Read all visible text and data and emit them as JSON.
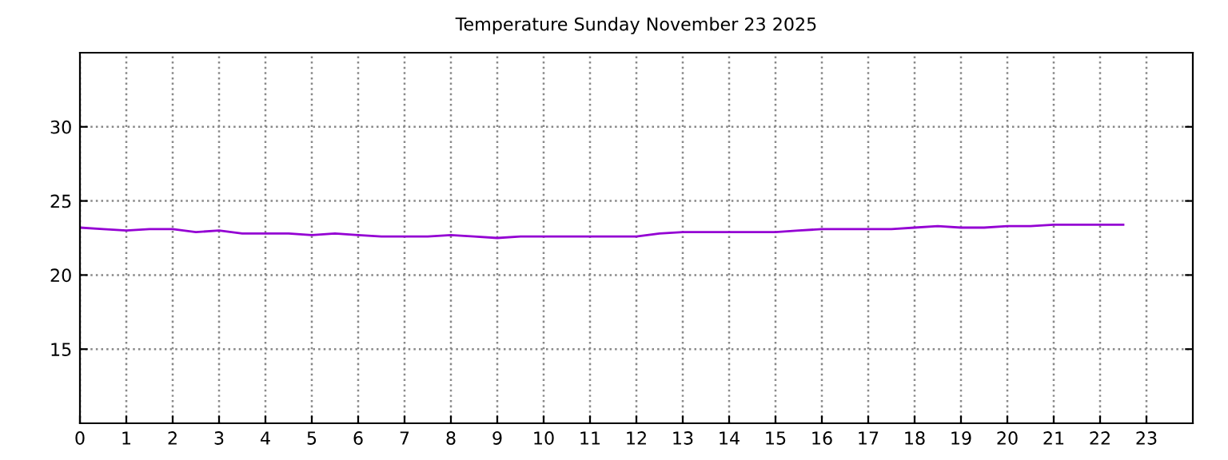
{
  "chart_data": {
    "type": "line",
    "title": "Temperature Sunday November 23 2025",
    "x": [
      0,
      0.5,
      1,
      1.5,
      2,
      2.5,
      3,
      3.5,
      4,
      4.5,
      5,
      5.5,
      6,
      6.5,
      7,
      7.5,
      8,
      8.5,
      9,
      9.5,
      10,
      10.5,
      11,
      11.5,
      12,
      12.5,
      13,
      13.5,
      14,
      14.5,
      15,
      15.5,
      16,
      16.5,
      17,
      17.5,
      18,
      18.5,
      19,
      19.5,
      20,
      20.5,
      21,
      21.5,
      22,
      22.5
    ],
    "series": [
      {
        "color": "#9400d3",
        "values": [
          23.2,
          23.1,
          23.0,
          23.1,
          23.1,
          22.9,
          23.0,
          22.8,
          22.8,
          22.8,
          22.7,
          22.8,
          22.7,
          22.6,
          22.6,
          22.6,
          22.7,
          22.6,
          22.5,
          22.6,
          22.6,
          22.6,
          22.6,
          22.6,
          22.6,
          22.8,
          22.9,
          22.9,
          22.9,
          22.9,
          22.9,
          23.0,
          23.1,
          23.1,
          23.1,
          23.1,
          23.2,
          23.3,
          23.2,
          23.2,
          23.3,
          23.3,
          23.4,
          23.4,
          23.4,
          23.4
        ]
      }
    ],
    "xlim": [
      0,
      24
    ],
    "xticks": [
      0,
      1,
      2,
      3,
      4,
      5,
      6,
      7,
      8,
      9,
      10,
      11,
      12,
      13,
      14,
      15,
      16,
      17,
      18,
      19,
      20,
      21,
      22,
      23
    ],
    "ylim": [
      10,
      35
    ],
    "yticks": [
      15,
      20,
      25,
      30
    ],
    "grid": true,
    "line_style": "solid",
    "marker": "none"
  }
}
